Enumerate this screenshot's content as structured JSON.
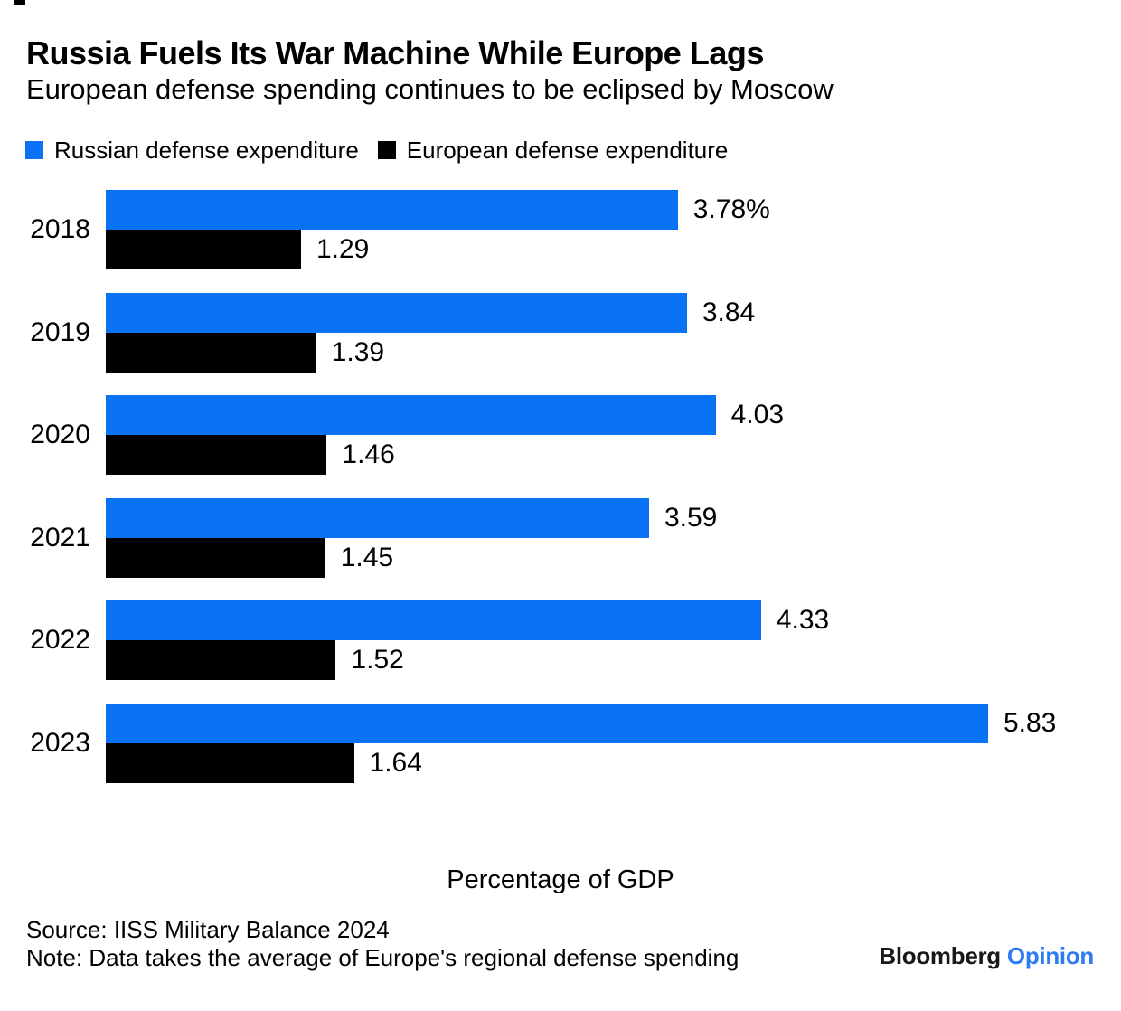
{
  "header": {
    "title": "Russia Fuels Its War Machine While Europe Lags",
    "subtitle": "European defense spending continues to be eclipsed by Moscow"
  },
  "legend": {
    "items": [
      {
        "key": "russia",
        "label": "Russian defense expenditure",
        "color": "#0a72f5"
      },
      {
        "key": "europe",
        "label": "European defense expenditure",
        "color": "#000000"
      }
    ]
  },
  "chart_data": {
    "type": "bar",
    "orientation": "horizontal",
    "title": "Russia Fuels Its War Machine While Europe Lags",
    "subtitle": "European defense spending continues to be eclipsed by Moscow",
    "categories": [
      "2018",
      "2019",
      "2020",
      "2021",
      "2022",
      "2023"
    ],
    "series": [
      {
        "name": "Russian defense expenditure",
        "key": "russia",
        "color": "#0a72f5",
        "values": [
          3.78,
          3.84,
          4.03,
          3.59,
          4.33,
          5.83
        ],
        "value_labels": [
          "3.78%",
          "3.84",
          "4.03",
          "3.59",
          "4.33",
          "5.83"
        ]
      },
      {
        "name": "European defense expenditure",
        "key": "europe",
        "color": "#000000",
        "values": [
          1.29,
          1.39,
          1.46,
          1.45,
          1.52,
          1.64
        ],
        "value_labels": [
          "1.29",
          "1.39",
          "1.46",
          "1.45",
          "1.52",
          "1.64"
        ]
      }
    ],
    "xlabel": "Percentage of GDP",
    "xlim": [
      0,
      6.5
    ],
    "grid": false,
    "legend_position": "top",
    "unit": "percent of GDP"
  },
  "footer": {
    "source": "Source: IISS Military Balance 2024",
    "note": "Note: Data takes the average of Europe's regional defense spending",
    "brand": {
      "name": "Bloomberg",
      "product": "Opinion",
      "name_color": "#19191b",
      "product_color": "#2e7bf2"
    }
  }
}
